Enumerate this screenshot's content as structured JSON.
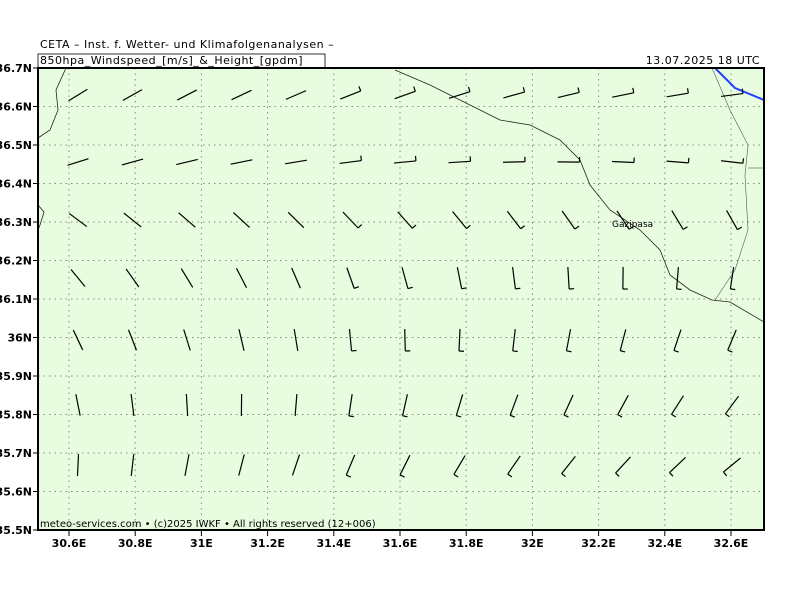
{
  "header": {
    "source": "CETA – Inst. f. Wetter- und Klimafolgenanalysen –",
    "title": "850hpa_Windspeed_[m/s]_&_Height_[gpdm]",
    "date": "13.07.2025  18 UTC"
  },
  "axes": {
    "x_labels": [
      "30.6E",
      "30.8E",
      "31E",
      "31.2E",
      "31.4E",
      "31.6E",
      "31.8E",
      "32E",
      "32.2E",
      "32.4E",
      "32.6E"
    ],
    "y_labels": [
      "36.7N",
      "36.6N",
      "36.5N",
      "36.4N",
      "36.3N",
      "36.2N",
      "36.1N",
      "36N",
      "35.9N",
      "35.8N",
      "35.7N",
      "35.6N",
      "35.5N"
    ]
  },
  "places": [
    "Gazipasa"
  ],
  "footer": "meteo-services.com • (c)2025 IWKF • All rights reserved (12+006)"
}
